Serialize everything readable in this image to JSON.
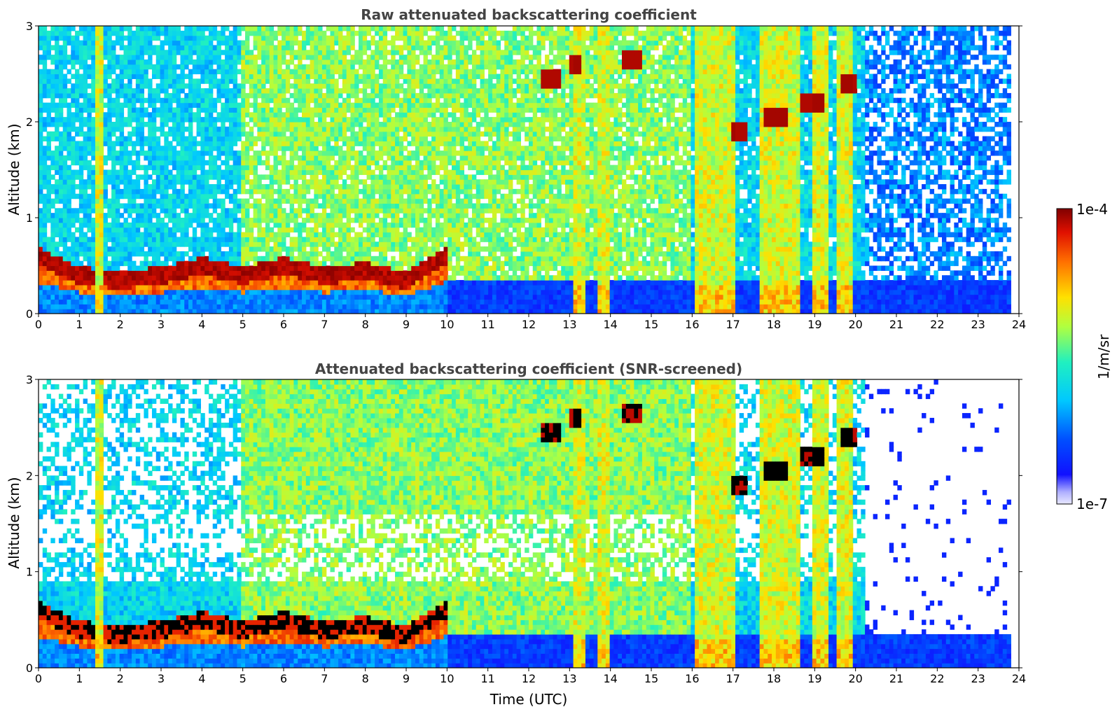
{
  "chart_data": [
    {
      "type": "heatmap",
      "title": "Raw attenuated backscattering coefficient",
      "xlabel": "",
      "ylabel": "Altitude (km)",
      "xlim": [
        0,
        24
      ],
      "ylim": [
        0,
        3
      ],
      "xticks": [
        "0",
        "1",
        "2",
        "3",
        "4",
        "5",
        "6",
        "7",
        "8",
        "9",
        "10",
        "11",
        "12",
        "13",
        "14",
        "15",
        "16",
        "17",
        "18",
        "19",
        "20",
        "21",
        "22",
        "23",
        "24"
      ],
      "yticks": [
        "0",
        "1",
        "2",
        "3"
      ],
      "data_end_time": 23.8,
      "screened": false,
      "features": {
        "boundary_layer_top_km": [
          [
            0,
            0.6
          ],
          [
            1,
            0.4
          ],
          [
            2,
            0.35
          ],
          [
            3,
            0.4
          ],
          [
            4,
            0.5
          ],
          [
            5,
            0.4
          ],
          [
            6,
            0.5
          ],
          [
            7,
            0.4
          ],
          [
            8,
            0.45
          ],
          [
            9,
            0.35
          ],
          [
            10,
            0.6
          ]
        ],
        "cloud_segments": [
          {
            "t0": 12.3,
            "t1": 12.8,
            "alt": 2.45
          },
          {
            "t0": 13.0,
            "t1": 13.3,
            "alt": 2.6
          },
          {
            "t0": 14.3,
            "t1": 14.8,
            "alt": 2.65
          },
          {
            "t0": 17.0,
            "t1": 17.4,
            "alt": 1.9
          },
          {
            "t0": 17.8,
            "t1": 18.3,
            "alt": 2.05
          },
          {
            "t0": 18.6,
            "t1": 19.2,
            "alt": 2.2
          },
          {
            "t0": 19.6,
            "t1": 20.0,
            "alt": 2.4
          }
        ],
        "precip_columns": [
          {
            "t0": 16.1,
            "t1": 17.1
          },
          {
            "t0": 17.7,
            "t1": 18.6
          },
          {
            "t0": 18.9,
            "t1": 19.3
          },
          {
            "t0": 19.5,
            "t1": 19.9
          },
          {
            "t0": 13.1,
            "t1": 13.35
          },
          {
            "t0": 13.7,
            "t1": 14.0
          },
          {
            "t0": 1.35,
            "t1": 1.55
          }
        ]
      }
    },
    {
      "type": "heatmap",
      "title": "Attenuated backscattering coefficient (SNR-screened)",
      "xlabel": "Time (UTC)",
      "ylabel": "Altitude (km)",
      "xlim": [
        0,
        24
      ],
      "ylim": [
        0,
        3
      ],
      "xticks": [
        "0",
        "1",
        "2",
        "3",
        "4",
        "5",
        "6",
        "7",
        "8",
        "9",
        "10",
        "11",
        "12",
        "13",
        "14",
        "15",
        "16",
        "17",
        "18",
        "19",
        "20",
        "21",
        "22",
        "23",
        "24"
      ],
      "yticks": [
        "0",
        "1",
        "2",
        "3"
      ],
      "data_end_time": 23.8,
      "screened": true
    }
  ],
  "colorbar": {
    "label": "1/m/sr",
    "max_label": "1e-4",
    "min_label": "1e-7",
    "colormap": "jet",
    "saturation_color": "#000000"
  }
}
